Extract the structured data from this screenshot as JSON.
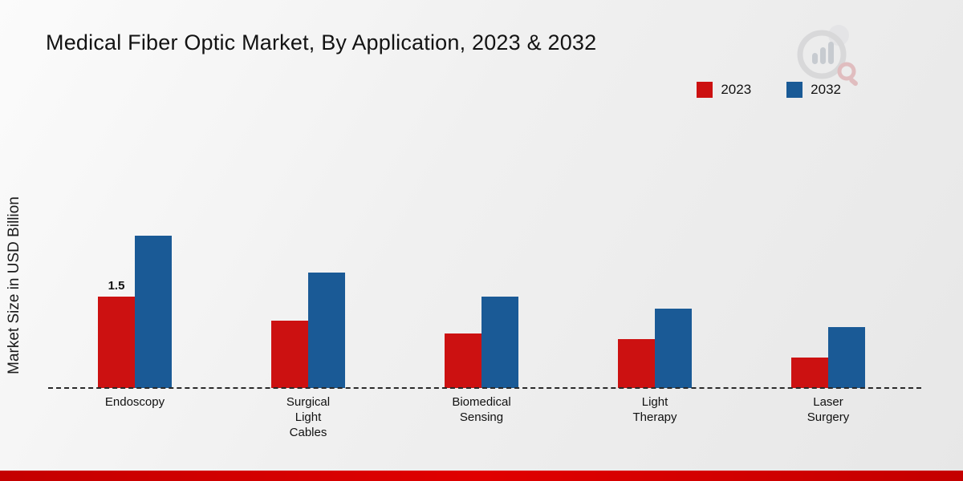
{
  "chart_data": {
    "type": "bar",
    "title": "Medical Fiber Optic Market, By Application, 2023 & 2032",
    "ylabel": "Market Size in USD Billion",
    "categories": [
      "Endoscopy",
      "Surgical Light Cables",
      "Biomedical Sensing",
      "Light Therapy",
      "Laser Surgery"
    ],
    "category_lines": [
      [
        "Endoscopy"
      ],
      [
        "Surgical",
        "Light",
        "Cables"
      ],
      [
        "Biomedical",
        "Sensing"
      ],
      [
        "Light",
        "Therapy"
      ],
      [
        "Laser",
        "Surgery"
      ]
    ],
    "series": [
      {
        "name": "2023",
        "color": "#cc1111",
        "values": [
          1.5,
          1.1,
          0.9,
          0.8,
          0.5
        ]
      },
      {
        "name": "2032",
        "color": "#1a5a96",
        "values": [
          2.5,
          1.9,
          1.5,
          1.3,
          1.0
        ]
      }
    ],
    "point_labels": [
      {
        "category_index": 0,
        "series_index": 0,
        "text": "1.5"
      }
    ],
    "ylim": [
      0,
      2.6
    ],
    "grid": false,
    "legend_position": "top-right",
    "baseline_style": "dashed"
  },
  "footer": {
    "bar_color": "#c40000"
  },
  "logo": {
    "label": "market-research-logo"
  }
}
